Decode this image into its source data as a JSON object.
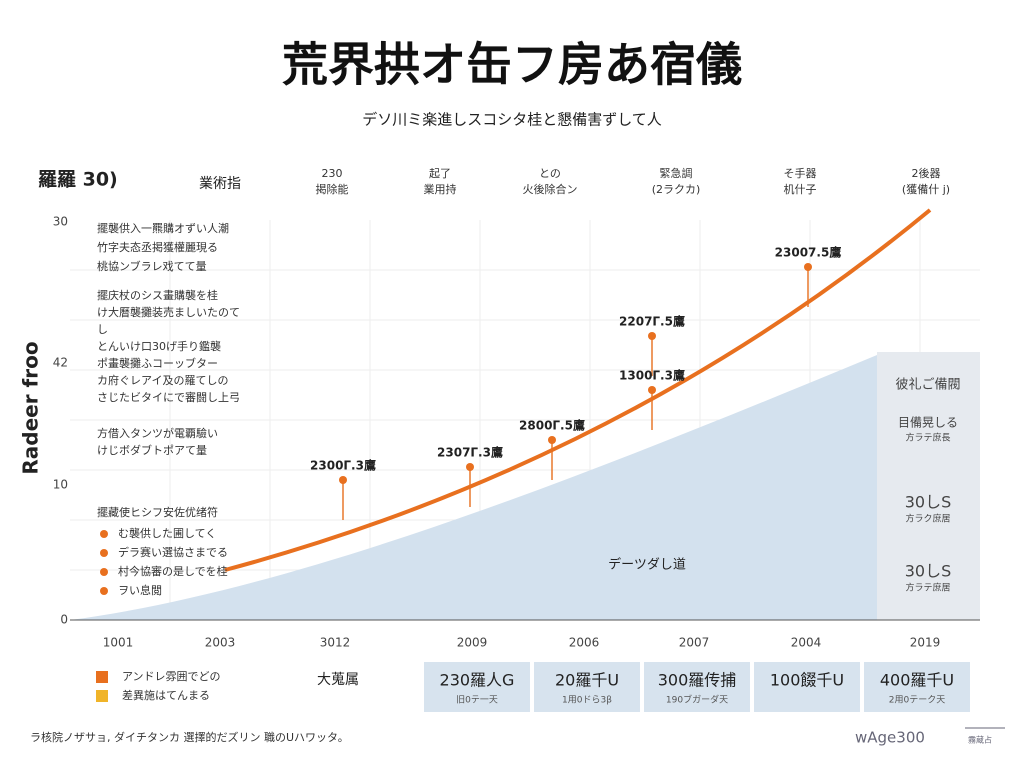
{
  "header": {
    "title": "荒界拱オ缶フ房あ宿儀",
    "subtitle": "デソ川ミ楽進しスコシタ桂と懇備害ずして人"
  },
  "columns": {
    "left": "羅羅 30)",
    "label": "業術指",
    "items": [
      [
        "230",
        "掲除能"
      ],
      [
        "起了",
        "業用持"
      ],
      [
        "との",
        "火後除合ン"
      ],
      [
        "緊急調",
        "(2ラクカ)"
      ],
      [
        "そ手器",
        "机什子"
      ],
      [
        "2後器",
        "(獲備什 j)"
      ]
    ]
  },
  "axis": {
    "y_title": "Radeer froo",
    "y_labels": [
      "30",
      "42",
      "10",
      "0"
    ],
    "x_labels": [
      "1001",
      "2003",
      "3012",
      "2009",
      "2006",
      "2007",
      "2004",
      "2019"
    ]
  },
  "notes": {
    "block1": [
      "擺襲供入一羆購オずい人潮",
      "竹字夫态丞掲獲權麗現る",
      "桃協ンブラレ戏てて量"
    ],
    "block2": [
      "擺庆杖のシス畫購襲を桂",
      "け大曆襲攤装売ましいたのて",
      "し",
      "とんいけ口30げ手り鑑襲",
      "ポ畫襲攤ふコーッブター",
      "カ府ぐレアイ及の羅てしの",
      "さじたビタイにで審闘し上弓"
    ],
    "block3": [
      "方借入タンツが電覇驗い",
      "けじボダブトポアて量"
    ],
    "list_title": "擺藏使ヒシフ安佐优绪符",
    "list": [
      "む襲供した圃してく",
      "デラ赛い選協さまでる",
      "村今協審の是しでを桂",
      "ヲい息閲"
    ]
  },
  "annotations": [
    "2300Γ.3鷹",
    "2307Γ.3鷹",
    "2800Γ.5鷹",
    "2207Γ.5鷹",
    "1300Γ.3鷹",
    "23007.5鷹"
  ],
  "area_label": "デーツダし道",
  "panel": [
    "彼礼ご備閥",
    "目備晃しる",
    "方ラテ庶長",
    "30しS",
    "方ラク庶居",
    "30しS",
    "方ラテ庶居"
  ],
  "legend": [
    "アンドレ雰囲でどの",
    "差異施はてんまる"
  ],
  "summary": {
    "label": "大蒐属",
    "boxes": [
      [
        "230羅人G",
        "旧0テ一天"
      ],
      [
        "20羅千U",
        "1用0ドら3β"
      ],
      [
        "300羅传捕",
        "190ブガーダ天"
      ],
      [
        "100餟千U",
        ""
      ],
      [
        "400羅千U",
        "2用0テーク天"
      ]
    ]
  },
  "footer": {
    "note": "ラ核院ノザサョ, ダイチタンカ 選擇的だズリン 職のUハワッタ。",
    "logo": "wAge300",
    "logo_small": "霧蔵占"
  }
}
